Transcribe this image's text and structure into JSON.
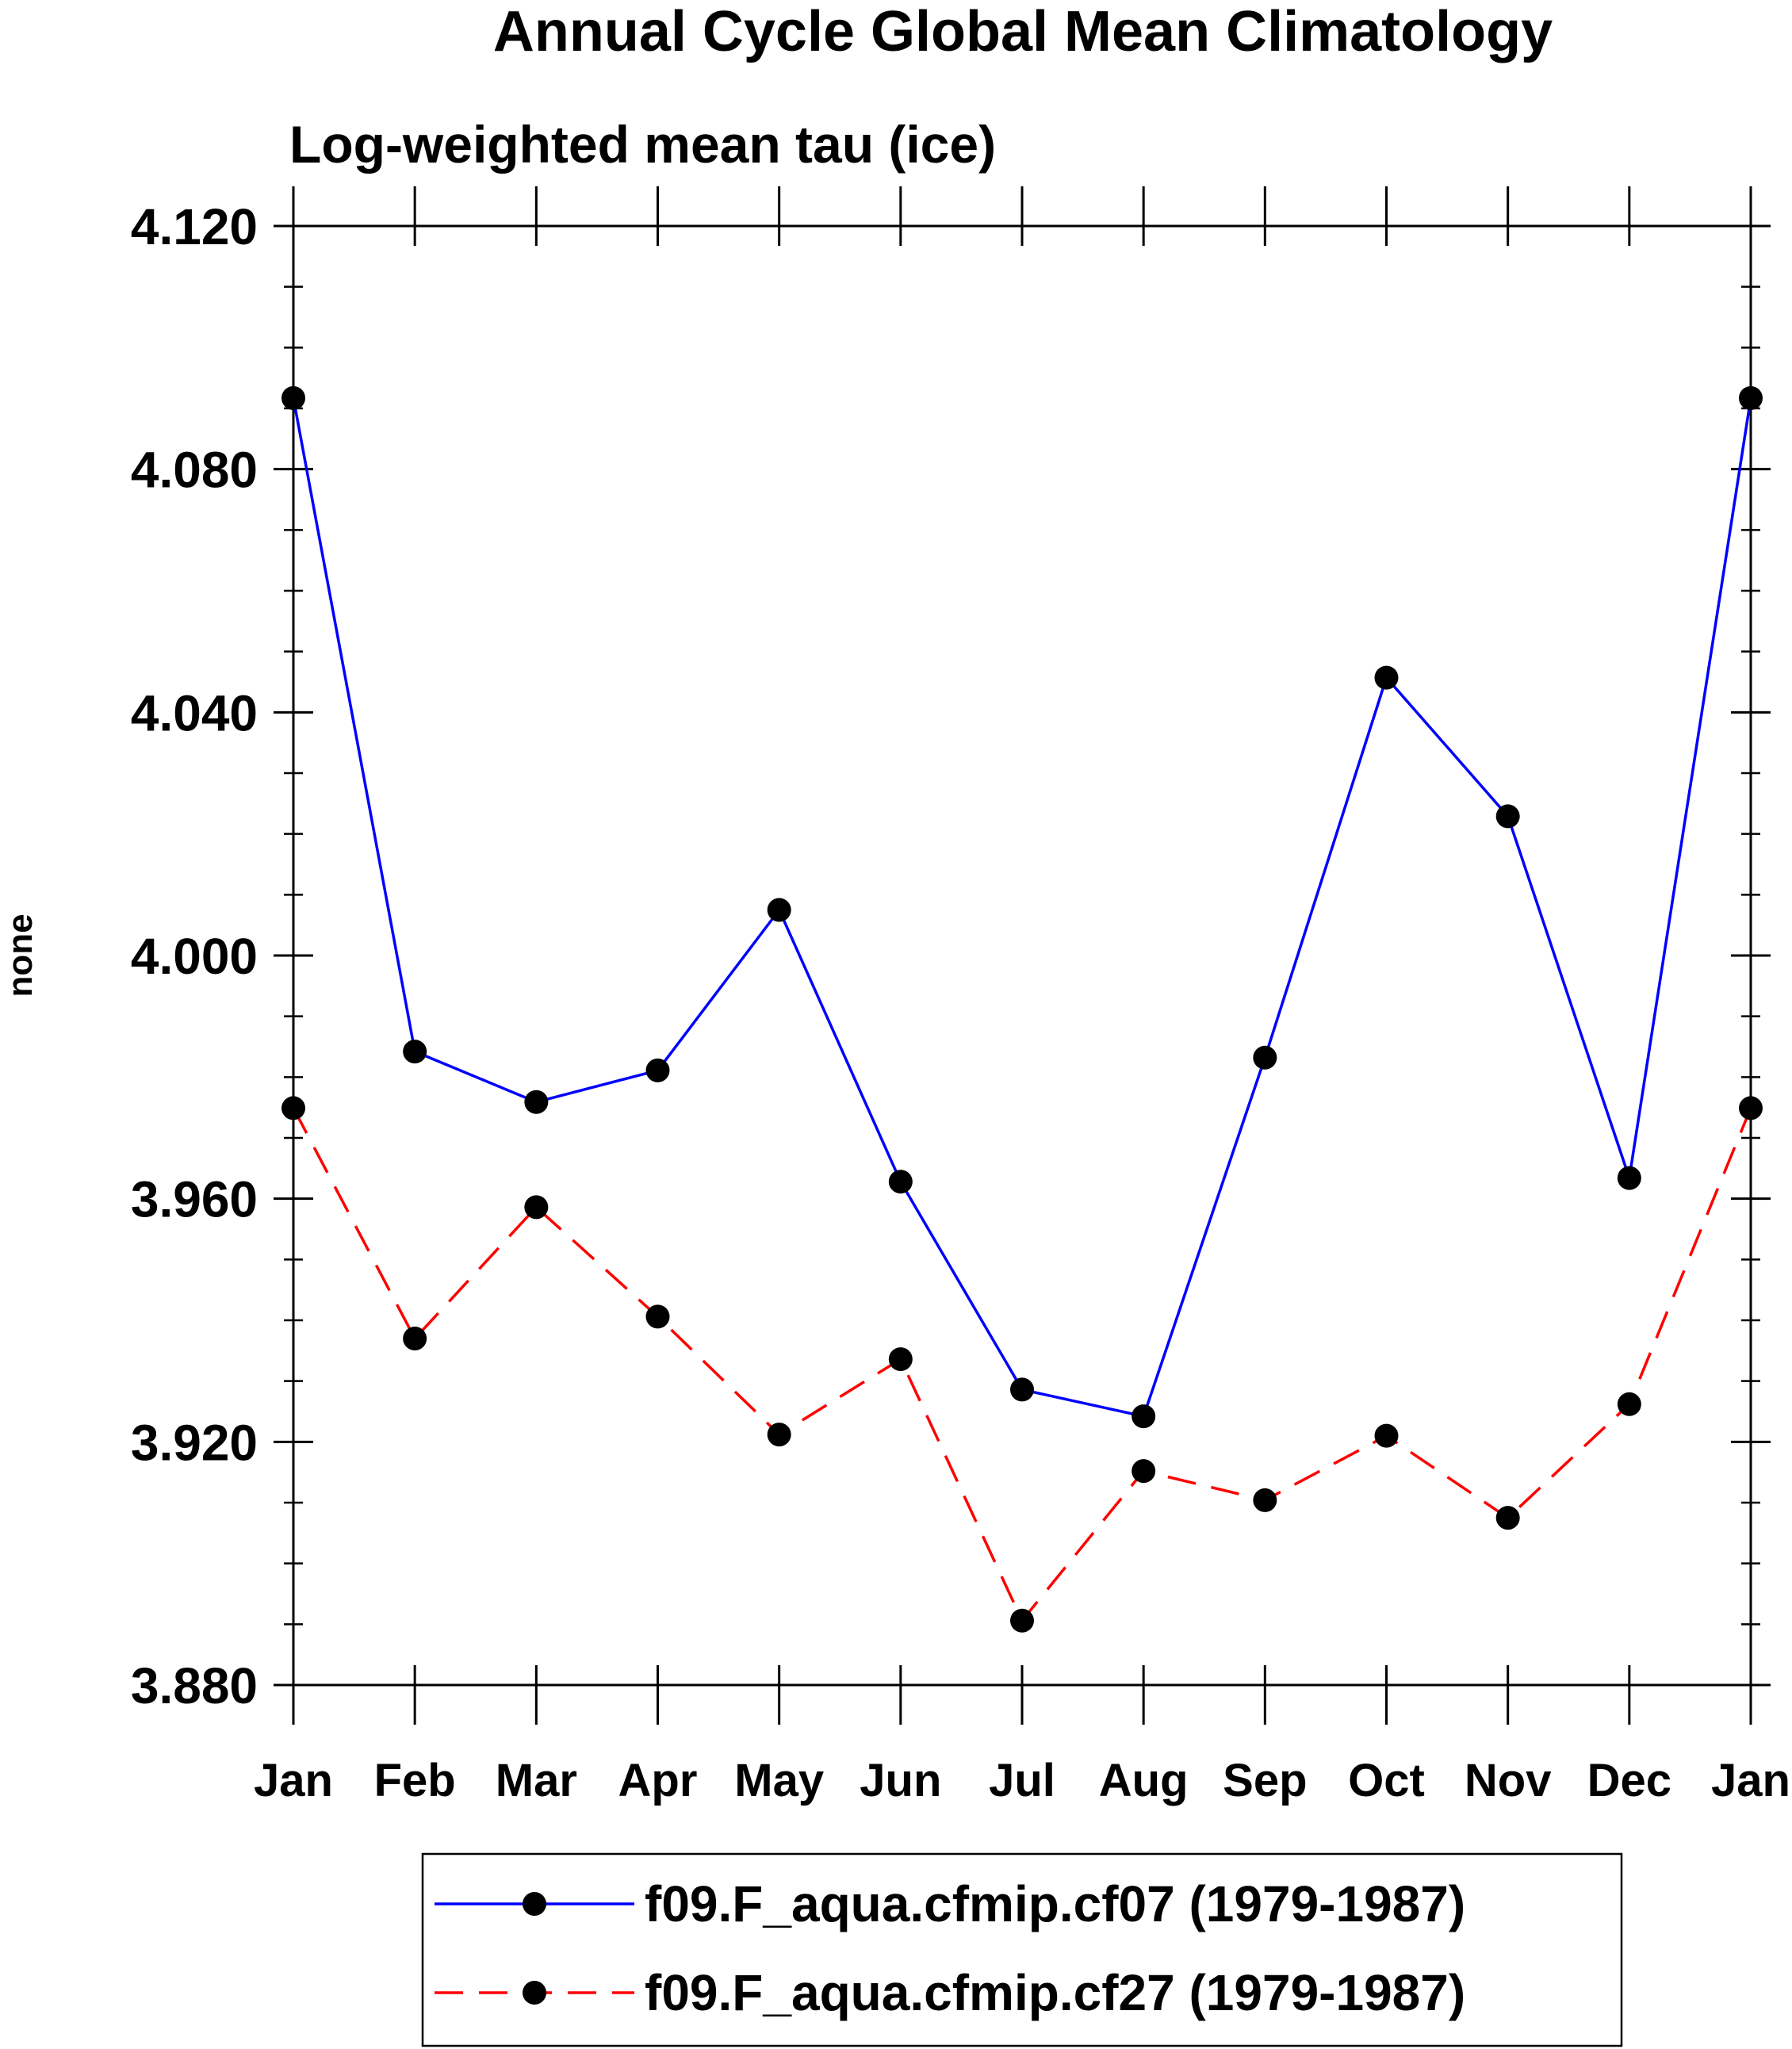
{
  "chart_data": {
    "type": "line",
    "title": "Annual Cycle Global Mean Climatology",
    "subtitle": "Log-weighted mean tau (ice)",
    "xlabel": "",
    "ylabel": "none",
    "categories": [
      "Jan",
      "Feb",
      "Mar",
      "Apr",
      "May",
      "Jun",
      "Jul",
      "Aug",
      "Sep",
      "Oct",
      "Nov",
      "Dec",
      "Jan"
    ],
    "ylim": [
      3.88,
      4.12
    ],
    "yticks": [
      3.88,
      3.92,
      3.96,
      4.0,
      4.04,
      4.08,
      4.12
    ],
    "ytick_labels": [
      "3.880",
      "3.920",
      "3.960",
      "4.000",
      "4.040",
      "4.080",
      "4.120"
    ],
    "y_minor_step": 0.01,
    "grid": false,
    "legend_position": "bottom-center",
    "series": [
      {
        "name": "f09.F_aqua.cfmip.cf07 (1979-1987)",
        "color": "#0000ff",
        "line_style": "solid",
        "marker": "filled-circle",
        "marker_color": "#000000",
        "values": [
          4.0917,
          3.9842,
          3.9759,
          3.9811,
          4.0075,
          3.9628,
          3.9286,
          3.9242,
          3.9832,
          4.0457,
          4.0229,
          3.9634,
          4.0917
        ]
      },
      {
        "name": "f09.F_aqua.cfmip.cf27 (1979-1987)",
        "color": "#ff0000",
        "line_style": "dashed",
        "marker": "filled-circle",
        "marker_color": "#000000",
        "values": [
          3.9749,
          3.937,
          3.9586,
          3.9406,
          3.9212,
          3.9336,
          3.8906,
          3.9152,
          3.9104,
          3.921,
          3.9075,
          3.9262,
          3.9749
        ]
      }
    ]
  }
}
